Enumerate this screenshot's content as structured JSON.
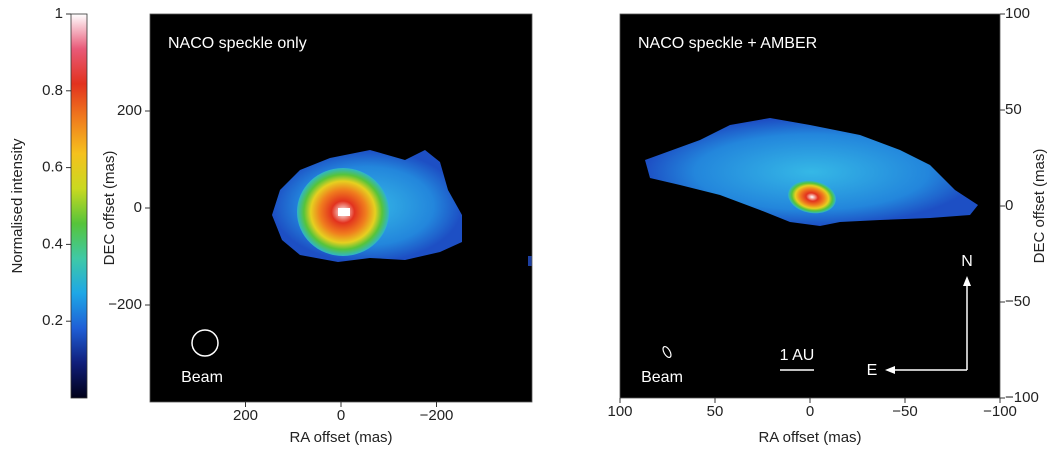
{
  "chart_data": [
    {
      "type": "colorbar",
      "ylabel": "Normalised intensity",
      "ylim": [
        0,
        1
      ],
      "yticks": [
        0.2,
        0.4,
        0.6,
        0.8,
        1
      ],
      "colors": [
        "#000018",
        "#101e7a",
        "#1f5fd6",
        "#1ea7e6",
        "#3fc9a6",
        "#56c43a",
        "#c9d920",
        "#f5c11e",
        "#f07d1e",
        "#e2321e",
        "#e85a78",
        "#ffffff"
      ]
    },
    {
      "type": "image",
      "title": "NACO speckle only",
      "xlabel": "RA offset (mas)",
      "ylabel": "DEC offset (mas)",
      "xlim": [
        400,
        -400
      ],
      "ylim": [
        -400,
        400
      ],
      "xticks": [
        200,
        0,
        {
          "value": -200,
          "label": "−200"
        }
      ],
      "yticks": [
        {
          "value": -200,
          "label": "−200"
        },
        0,
        200
      ],
      "annotations": [
        "Beam"
      ]
    },
    {
      "type": "image",
      "title": "NACO speckle + AMBER",
      "xlabel": "RA offset (mas)",
      "ylabel": "DEC offset (mas)",
      "xlim": [
        100,
        -100
      ],
      "ylim": [
        -100,
        100
      ],
      "xticks": [
        100,
        50,
        0,
        {
          "value": -50,
          "label": "−50"
        },
        {
          "value": -100,
          "label": "−100"
        }
      ],
      "yticks": [
        {
          "value": -100,
          "label": "−100"
        },
        {
          "value": -50,
          "label": "−50"
        },
        0,
        50,
        100
      ],
      "annotations": [
        "Beam",
        "1 AU",
        "N",
        "E"
      ]
    }
  ]
}
